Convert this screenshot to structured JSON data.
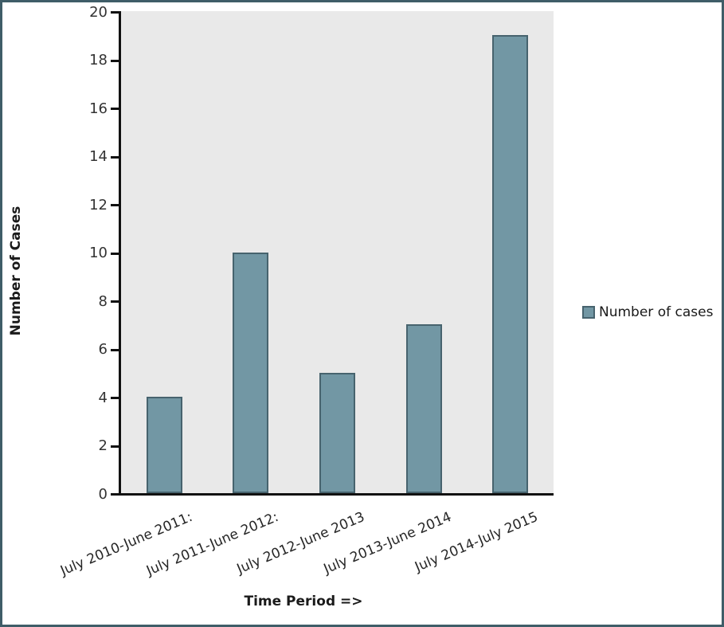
{
  "chart_data": {
    "type": "bar",
    "categories": [
      "July 2010-June 2011:",
      "July 2011-June 2012:",
      "July 2012-June 2013",
      "July 2013-June 2014",
      "July 2014-July 2015"
    ],
    "series": [
      {
        "name": "Number of cases",
        "values": [
          4,
          10,
          5,
          7,
          19
        ]
      }
    ],
    "title": "",
    "xlabel": "Time Period =>",
    "ylabel": "Number of Cases",
    "ylim": [
      0,
      20
    ],
    "ytick_step": 2,
    "ytick_labels": [
      "0",
      "2",
      "4",
      "6",
      "8",
      "10",
      "12",
      "14",
      "16",
      "18",
      "20"
    ],
    "grid": false,
    "legend": {
      "position": "right",
      "entries": [
        "Number of cases"
      ]
    },
    "colors": {
      "bar_fill": "#7297A4",
      "bar_border": "#47636E",
      "plot_background": "#E9E9E9",
      "frame_border": "#3F5D68",
      "axis": "#111111",
      "text": "#262626"
    }
  }
}
